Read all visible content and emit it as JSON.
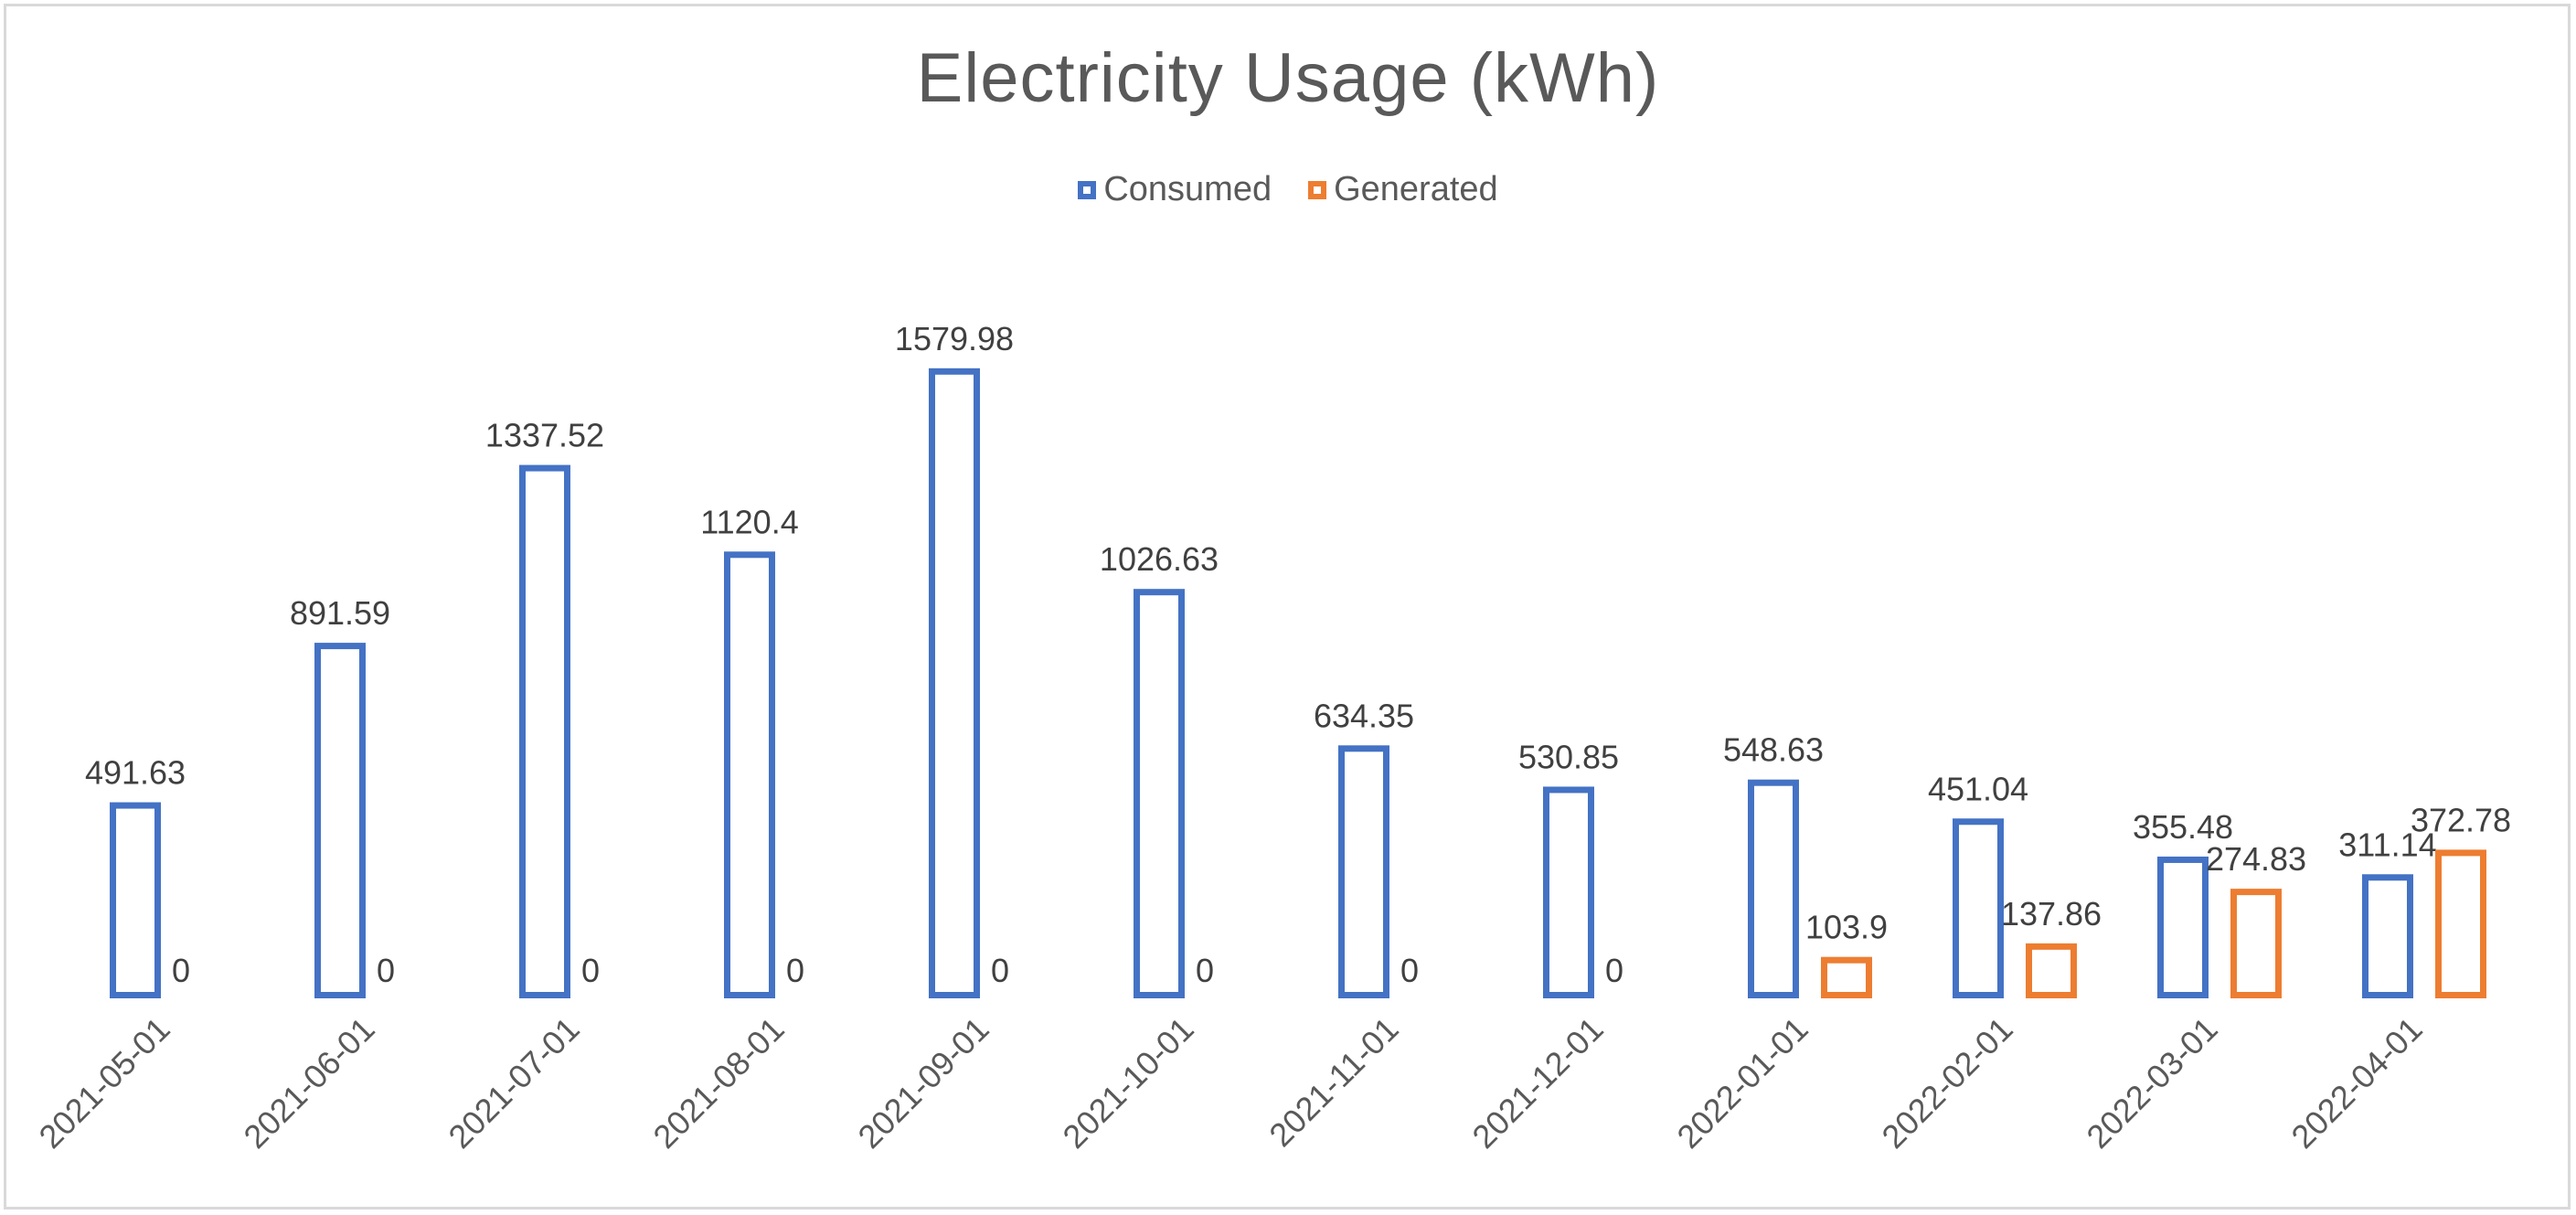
{
  "chart_data": {
    "type": "bar",
    "title": "Electricity Usage (kWh)",
    "xlabel": "",
    "ylabel": "",
    "categories": [
      "2021-05-01",
      "2021-06-01",
      "2021-07-01",
      "2021-08-01",
      "2021-09-01",
      "2021-10-01",
      "2021-11-01",
      "2021-12-01",
      "2022-01-01",
      "2022-02-01",
      "2022-03-01",
      "2022-04-01"
    ],
    "series": [
      {
        "name": "Consumed",
        "color": "#4472C4",
        "values": [
          491.63,
          891.59,
          1337.52,
          1120.4,
          1579.98,
          1026.63,
          634.35,
          530.85,
          548.63,
          451.04,
          355.48,
          311.14
        ]
      },
      {
        "name": "Generated",
        "color": "#ED7D31",
        "values": [
          0,
          0,
          0,
          0,
          0,
          0,
          0,
          0,
          103.9,
          137.86,
          274.83,
          372.78
        ]
      }
    ],
    "ylim": [
      0,
      1700
    ],
    "grid": false,
    "legend_position": "top",
    "data_labels": true
  }
}
